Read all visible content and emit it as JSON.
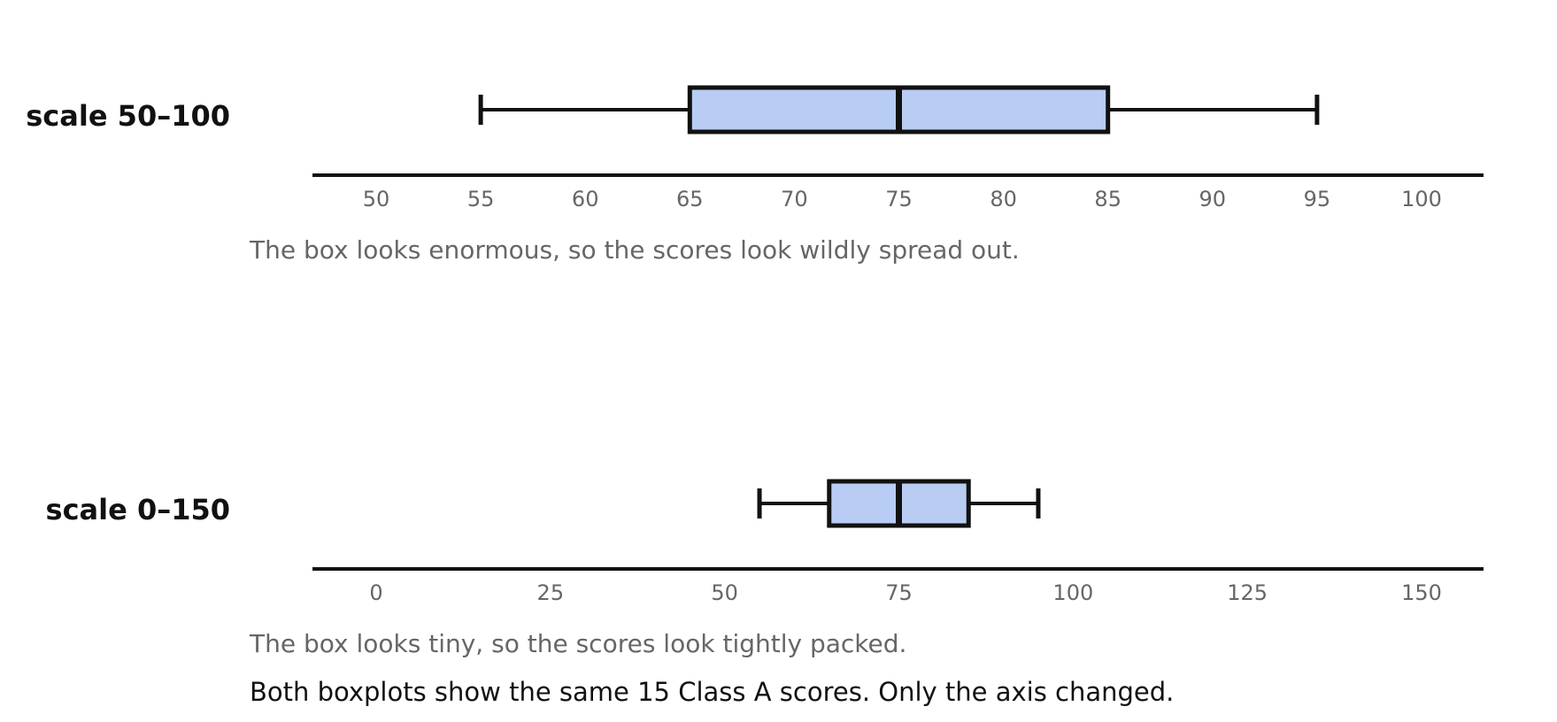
{
  "colors": {
    "box_fill": "#b8ccf4",
    "stroke": "#111111",
    "tick_text": "#666666",
    "caption_text": "#666666",
    "label_text": "#111111"
  },
  "chart_data": [
    {
      "type": "box",
      "orientation": "horizontal",
      "label": "scale 50–100",
      "xlim": [
        50,
        100
      ],
      "ticks": [
        50,
        55,
        60,
        65,
        70,
        75,
        80,
        85,
        90,
        95,
        100
      ],
      "box": {
        "whisker_low": 55,
        "q1": 65,
        "median": 75,
        "q3": 85,
        "whisker_high": 95
      },
      "caption": "The box looks enormous, so the scores look wildly spread out."
    },
    {
      "type": "box",
      "orientation": "horizontal",
      "label": "scale 0–150",
      "xlim": [
        0,
        150
      ],
      "ticks": [
        0,
        25,
        50,
        75,
        100,
        125,
        150
      ],
      "box": {
        "whisker_low": 55,
        "q1": 65,
        "median": 75,
        "q3": 85,
        "whisker_high": 95
      },
      "caption": "The box looks tiny, so the scores look tightly packed."
    }
  ],
  "footer_note": "Both boxplots show the same 15 Class A scores. Only the axis changed."
}
